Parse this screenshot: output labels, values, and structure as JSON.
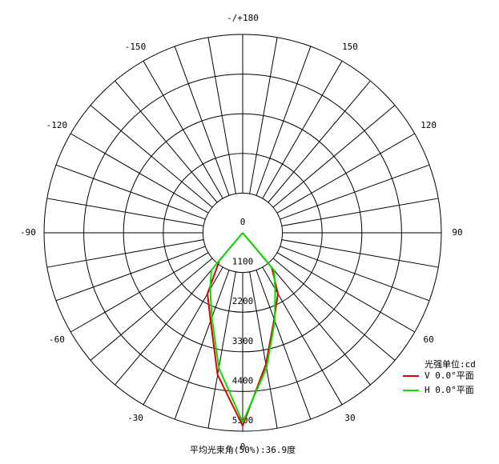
{
  "chart_data": {
    "type": "polar",
    "x": [
      -50,
      -40,
      -30,
      -20,
      -10,
      0,
      10,
      20,
      30,
      40,
      50
    ],
    "series": [
      {
        "name": "V 0.0°平面",
        "color": "#e00000",
        "values": [
          0,
          1000,
          1950,
          2600,
          4000,
          5350,
          3700,
          2550,
          1950,
          1250,
          0
        ]
      },
      {
        "name": "H 0.0°平面",
        "color": "#00e000",
        "values": [
          0,
          1350,
          1800,
          2500,
          3800,
          5250,
          3800,
          2600,
          1800,
          1350,
          0
        ]
      }
    ],
    "ylim": [
      0,
      5500
    ],
    "yticks": [
      0,
      1100,
      2200,
      3300,
      4400,
      5500
    ],
    "xticks": [
      {
        "value": 180,
        "label": "-/+180"
      },
      150,
      -150,
      120,
      -120,
      90,
      -90,
      60,
      -60,
      30,
      -30,
      0
    ],
    "angle_grid_step": 10,
    "legend_title": "光强单位:cd",
    "legend": "bottom-right",
    "footer": "平均光束角(50%):36.9度"
  }
}
